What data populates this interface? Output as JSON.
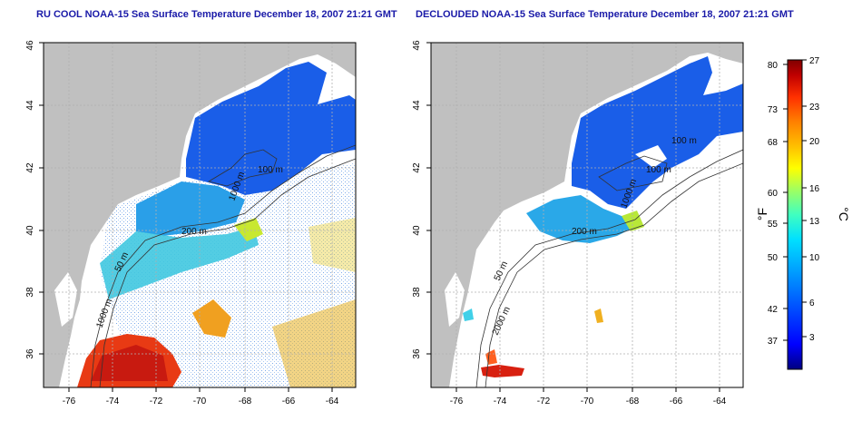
{
  "panels": [
    {
      "title": "RU COOL NOAA-15 Sea Surface Temperature December 18, 2007 21:21 GMT",
      "contour_labels": [
        "100 m",
        "200 m",
        "1000 m",
        "50 m",
        "1000 m"
      ]
    },
    {
      "title": "DECLOUDED NOAA-15 Sea Surface Temperature December 18, 2007 21:21 GMT",
      "contour_labels": [
        "100 m",
        "100 m",
        "200 m",
        "1000 m",
        "50 m",
        "2000 m"
      ]
    }
  ],
  "map_axes": {
    "x_ticks": [
      "-76",
      "-74",
      "-72",
      "-70",
      "-68",
      "-66",
      "-64"
    ],
    "y_ticks": [
      "36",
      "38",
      "40",
      "42",
      "44",
      "46"
    ]
  },
  "colorbar": {
    "fahrenheit_ticks": [
      "80",
      "73",
      "68",
      "60",
      "55",
      "50",
      "42",
      "37"
    ],
    "celsius_ticks": [
      "27",
      "23",
      "20",
      "16",
      "13",
      "10",
      "6",
      "3"
    ],
    "unit_f": "°F",
    "unit_c": "°C",
    "colors": [
      "#000080",
      "#0000ff",
      "#0050ff",
      "#00a0ff",
      "#00e0ff",
      "#40ffc0",
      "#a0ff60",
      "#ffff00",
      "#ffc000",
      "#ff8000",
      "#ff3000",
      "#c00000",
      "#800000"
    ]
  },
  "colors": {
    "land": "#c0c0c0",
    "ocean_cloud": "#ffffff",
    "grid": "#b0b0b0",
    "title": "#1a1aa8"
  }
}
